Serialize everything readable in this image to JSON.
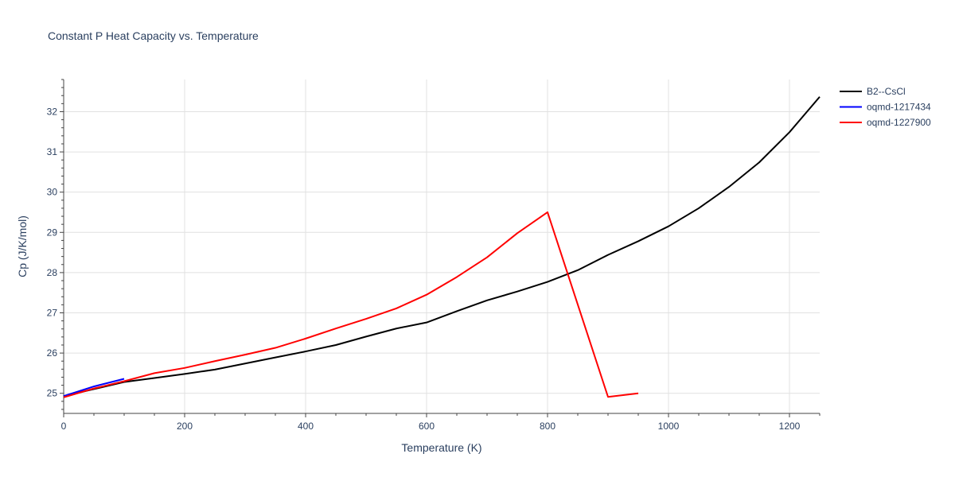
{
  "chart_data": {
    "type": "line",
    "title": "Constant P Heat Capacity vs. Temperature",
    "xlabel": "Temperature (K)",
    "ylabel": "Cp (J/K/mol)",
    "xlim": [
      0,
      1250
    ],
    "ylim": [
      24.5,
      32.8
    ],
    "x_ticks": [
      0,
      200,
      400,
      600,
      800,
      1000,
      1200
    ],
    "y_ticks": [
      25,
      26,
      27,
      28,
      29,
      30,
      31,
      32
    ],
    "grid": true,
    "legend_position": "top-right",
    "series": [
      {
        "name": "B2--CsCl",
        "color": "#000000",
        "x": [
          0,
          100,
          150,
          200,
          250,
          300,
          350,
          400,
          450,
          500,
          550,
          600,
          650,
          700,
          750,
          800,
          850,
          900,
          950,
          1000,
          1050,
          1100,
          1150,
          1200,
          1250
        ],
        "y": [
          24.93,
          25.28,
          25.38,
          25.48,
          25.59,
          25.74,
          25.89,
          26.04,
          26.2,
          26.41,
          26.61,
          26.76,
          27.04,
          27.31,
          27.53,
          27.77,
          28.06,
          28.44,
          28.78,
          29.15,
          29.6,
          30.13,
          30.74,
          31.49,
          32.37
        ]
      },
      {
        "name": "oqmd-1217434",
        "color": "#0000ff",
        "x": [
          0,
          50,
          100
        ],
        "y": [
          24.93,
          25.17,
          25.36
        ]
      },
      {
        "name": "oqmd-1227900",
        "color": "#ff0000",
        "x": [
          0,
          50,
          100,
          150,
          200,
          250,
          300,
          350,
          400,
          450,
          500,
          550,
          600,
          650,
          700,
          750,
          800,
          900,
          950
        ],
        "y": [
          24.9,
          25.12,
          25.3,
          25.5,
          25.63,
          25.8,
          25.96,
          26.13,
          26.36,
          26.61,
          26.85,
          27.11,
          27.45,
          27.89,
          28.38,
          28.98,
          29.5,
          24.91,
          25.0
        ]
      }
    ]
  }
}
